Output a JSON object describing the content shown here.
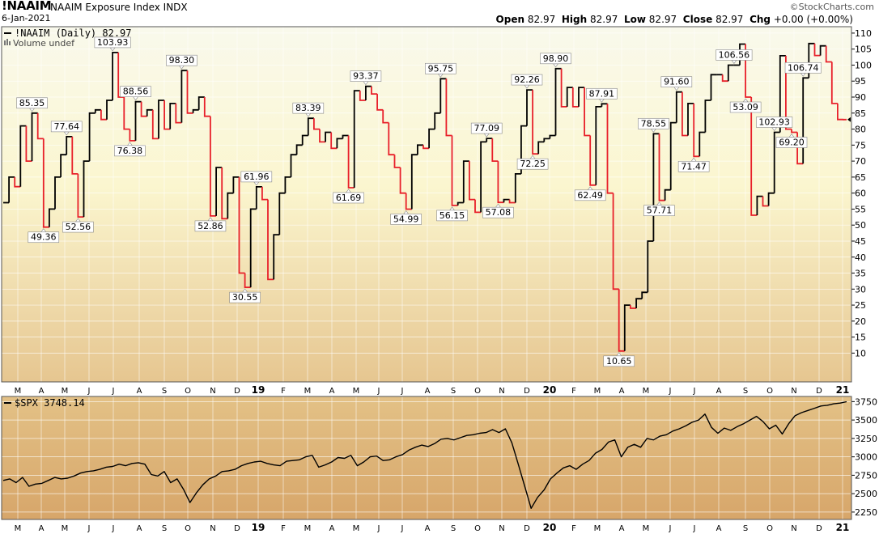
{
  "header": {
    "symbol": "!NAAIM",
    "name": "NAAIM Exposure Index  INDX",
    "date": "6-Jan-2021",
    "brand": "©StockCharts.com",
    "quote": {
      "open_label": "Open",
      "open": "82.97",
      "high_label": "High",
      "high": "82.97",
      "low_label": "Low",
      "low": "82.97",
      "close_label": "Close",
      "close": "82.97",
      "chg_label": "Chg",
      "chg": "+0.00 (+0.00%)"
    }
  },
  "colors": {
    "up": "#000000",
    "down": "#e8202a",
    "panel_top": "#f8f8e8",
    "panel_bottom": "#d8a868",
    "label_bg": "#ffffff"
  },
  "chart_data": [
    {
      "type": "line",
      "title": "!NAAIM (Daily) 82.97",
      "volume_note": "Volume undef",
      "months": [
        "M",
        "A",
        "M",
        "J",
        "J",
        "A",
        "S",
        "O",
        "N",
        "D",
        "19",
        "F",
        "M",
        "A",
        "M",
        "J",
        "J",
        "A",
        "S",
        "O",
        "N",
        "D",
        "20",
        "F",
        "M",
        "A",
        "M",
        "J",
        "J",
        "A",
        "S",
        "O",
        "N",
        "D",
        "21"
      ],
      "ylim": [
        1,
        112
      ],
      "yticks": [
        10,
        15,
        20,
        25,
        30,
        35,
        40,
        45,
        50,
        55,
        60,
        65,
        70,
        75,
        80,
        85,
        90,
        95,
        100,
        105,
        110
      ],
      "values": [
        57,
        65,
        62,
        81,
        70,
        85,
        77,
        49.36,
        55,
        65,
        72,
        77.64,
        66,
        52.56,
        70,
        85,
        86,
        83,
        89,
        103.93,
        90,
        80,
        76.38,
        88.56,
        84,
        86,
        77,
        89,
        80,
        88,
        82,
        98.3,
        85,
        86,
        90,
        84,
        52.86,
        68,
        52,
        60,
        65,
        35,
        30.55,
        55,
        61.96,
        58,
        33,
        47,
        60,
        65,
        72,
        75,
        78,
        83.39,
        80,
        76,
        79,
        74,
        77,
        78,
        61.69,
        92,
        89,
        93.37,
        91,
        86,
        82,
        72,
        68,
        60,
        54.99,
        72,
        75,
        74,
        80,
        85,
        95.75,
        78,
        56.15,
        57,
        70,
        58,
        54,
        76,
        77.09,
        70,
        57.08,
        58,
        57,
        66,
        81,
        92.26,
        72.25,
        76,
        77,
        78,
        98.9,
        87,
        93,
        87,
        93,
        78,
        62.49,
        87,
        87.91,
        60,
        30,
        10.65,
        25,
        24,
        27,
        29,
        45,
        78.55,
        57.71,
        61,
        82,
        91.6,
        78,
        88,
        71.47,
        79,
        89,
        97,
        97,
        95,
        100,
        100,
        106.56,
        90,
        53.09,
        59,
        56,
        60,
        79,
        102.93,
        80,
        79,
        69.2,
        96,
        106.74,
        103,
        106,
        101,
        88,
        83,
        82.97
      ],
      "peaks": [
        {
          "i": 5,
          "label": "85.35",
          "pos": "above"
        },
        {
          "i": 7,
          "label": "49.36",
          "pos": "below"
        },
        {
          "i": 11,
          "label": "77.64",
          "pos": "above"
        },
        {
          "i": 13,
          "label": "52.56",
          "pos": "below"
        },
        {
          "i": 19,
          "label": "103.93",
          "pos": "above"
        },
        {
          "i": 22,
          "label": "76.38",
          "pos": "below"
        },
        {
          "i": 23,
          "label": "88.56",
          "pos": "above"
        },
        {
          "i": 31,
          "label": "98.30",
          "pos": "above"
        },
        {
          "i": 36,
          "label": "52.86",
          "pos": "below"
        },
        {
          "i": 42,
          "label": "30.55",
          "pos": "below"
        },
        {
          "i": 44,
          "label": "61.96",
          "pos": "above"
        },
        {
          "i": 53,
          "label": "83.39",
          "pos": "above"
        },
        {
          "i": 60,
          "label": "61.69",
          "pos": "below"
        },
        {
          "i": 63,
          "label": "93.37",
          "pos": "above"
        },
        {
          "i": 70,
          "label": "54.99",
          "pos": "below"
        },
        {
          "i": 76,
          "label": "95.75",
          "pos": "above"
        },
        {
          "i": 78,
          "label": "56.15",
          "pos": "below"
        },
        {
          "i": 84,
          "label": "77.09",
          "pos": "above"
        },
        {
          "i": 86,
          "label": "57.08",
          "pos": "below"
        },
        {
          "i": 91,
          "label": "92.26",
          "pos": "above"
        },
        {
          "i": 92,
          "label": "72.25",
          "pos": "below"
        },
        {
          "i": 96,
          "label": "98.90",
          "pos": "above"
        },
        {
          "i": 102,
          "label": "62.49",
          "pos": "below"
        },
        {
          "i": 104,
          "label": "87.91",
          "pos": "above"
        },
        {
          "i": 107,
          "label": "10.65",
          "pos": "below"
        },
        {
          "i": 113,
          "label": "78.55",
          "pos": "above"
        },
        {
          "i": 114,
          "label": "57.71",
          "pos": "below"
        },
        {
          "i": 117,
          "label": "91.60",
          "pos": "above"
        },
        {
          "i": 120,
          "label": "71.47",
          "pos": "below"
        },
        {
          "i": 127,
          "label": "106.56",
          "pos": "above"
        },
        {
          "i": 129,
          "label": "53.09",
          "pos": "below"
        },
        {
          "i": 134,
          "label": "102.93",
          "pos": "above"
        },
        {
          "i": 137,
          "label": "69.20",
          "pos": "below"
        },
        {
          "i": 139,
          "label": "106.74",
          "pos": "above"
        }
      ]
    },
    {
      "type": "line",
      "title": "$SPX 3748.14",
      "months": [
        "M",
        "A",
        "M",
        "J",
        "J",
        "A",
        "S",
        "O",
        "N",
        "D",
        "19",
        "F",
        "M",
        "A",
        "M",
        "J",
        "J",
        "A",
        "S",
        "O",
        "N",
        "D",
        "20",
        "F",
        "M",
        "A",
        "M",
        "J",
        "J",
        "A",
        "S",
        "O",
        "N",
        "D",
        "21"
      ],
      "ylim": [
        2150,
        3820
      ],
      "yticks": [
        2250,
        2500,
        2750,
        3000,
        3250,
        3500,
        3750
      ],
      "values": [
        2680,
        2700,
        2650,
        2720,
        2600,
        2630,
        2640,
        2680,
        2720,
        2700,
        2710,
        2740,
        2780,
        2800,
        2810,
        2830,
        2860,
        2870,
        2900,
        2880,
        2910,
        2920,
        2900,
        2760,
        2740,
        2800,
        2650,
        2700,
        2560,
        2380,
        2510,
        2620,
        2700,
        2740,
        2800,
        2810,
        2830,
        2880,
        2910,
        2930,
        2940,
        2910,
        2890,
        2880,
        2940,
        2950,
        2960,
        3000,
        3020,
        2860,
        2890,
        2930,
        2990,
        2980,
        3020,
        2880,
        2930,
        3000,
        3010,
        2950,
        2960,
        3000,
        3030,
        3090,
        3130,
        3160,
        3140,
        3180,
        3240,
        3250,
        3230,
        3260,
        3290,
        3300,
        3320,
        3330,
        3370,
        3330,
        3380,
        3190,
        2900,
        2600,
        2300,
        2450,
        2550,
        2700,
        2780,
        2850,
        2880,
        2830,
        2900,
        2950,
        3050,
        3100,
        3200,
        3230,
        3000,
        3130,
        3170,
        3130,
        3250,
        3230,
        3280,
        3300,
        3350,
        3380,
        3420,
        3470,
        3500,
        3580,
        3400,
        3320,
        3390,
        3360,
        3410,
        3450,
        3500,
        3550,
        3480,
        3380,
        3430,
        3310,
        3450,
        3560,
        3600,
        3630,
        3660,
        3690,
        3700,
        3720,
        3730,
        3748.14
      ]
    }
  ]
}
